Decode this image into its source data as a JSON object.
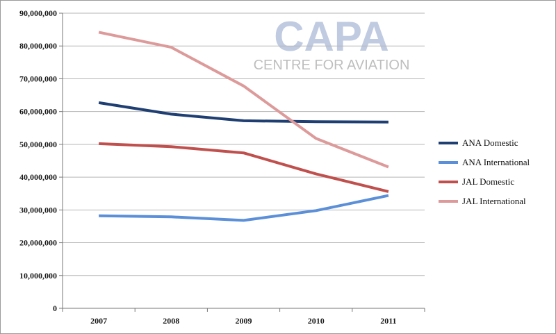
{
  "watermark": {
    "logo_text": "CAPA",
    "tagline": "CENTRE FOR AVIATION"
  },
  "chart_data": {
    "type": "line",
    "title": "",
    "xlabel": "",
    "ylabel": "",
    "categories": [
      "2007",
      "2008",
      "2009",
      "2010",
      "2011"
    ],
    "ylim": [
      0,
      90000000
    ],
    "ytick_labels": [
      "0",
      "10,000,000",
      "20,000,000",
      "30,000,000",
      "40,000,000",
      "50,000,000",
      "60,000,000",
      "70,000,000",
      "80,000,000",
      "90,000,000"
    ],
    "grid": true,
    "legend_position": "right",
    "series": [
      {
        "name": "ANA Domestic",
        "color": "#1f3f72",
        "values": [
          62700000,
          59200000,
          57200000,
          56900000,
          56800000
        ]
      },
      {
        "name": "ANA International",
        "color": "#5b8fd8",
        "values": [
          28200000,
          27900000,
          26800000,
          29800000,
          34400000
        ]
      },
      {
        "name": "JAL Domestic",
        "color": "#c0504d",
        "values": [
          50200000,
          49300000,
          47400000,
          41000000,
          35600000
        ]
      },
      {
        "name": "JAL International",
        "color": "#dd9a9a",
        "values": [
          84200000,
          79600000,
          67800000,
          51800000,
          43100000
        ]
      }
    ]
  }
}
